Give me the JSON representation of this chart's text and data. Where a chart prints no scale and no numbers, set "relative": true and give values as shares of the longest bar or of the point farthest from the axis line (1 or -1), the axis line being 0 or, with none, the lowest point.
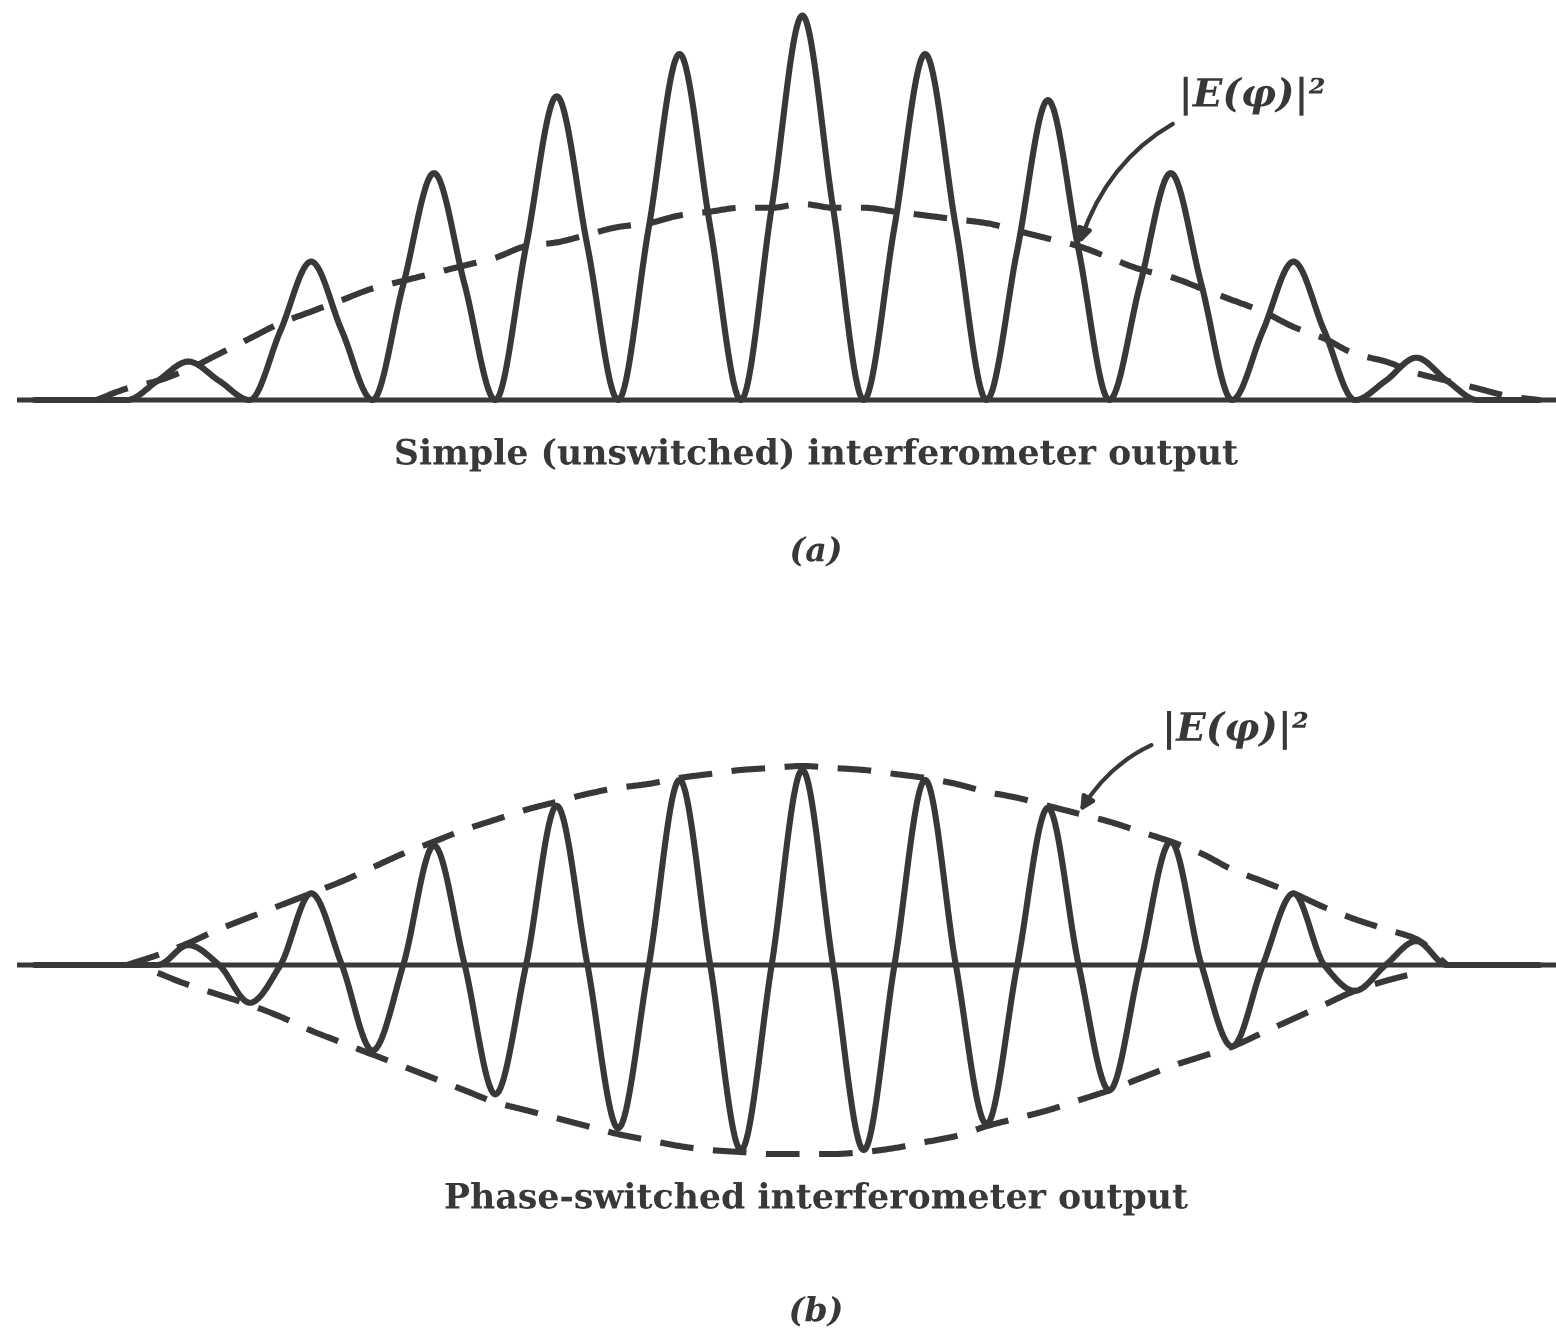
{
  "chart_data": [
    {
      "type": "line",
      "relative": true,
      "xlabel": "Simple (unswitched) interferometer output",
      "annotations": [
        "(a)"
      ],
      "categories": [
        null,
        null,
        null,
        null,
        null,
        null,
        null,
        null,
        null,
        null,
        null,
        null,
        null,
        null,
        null,
        null,
        null,
        null,
        null,
        null,
        null,
        null,
        null,
        null,
        null,
        null,
        null,
        null,
        null,
        null,
        null,
        null,
        null,
        null,
        null,
        null,
        null,
        null,
        null,
        null,
        null,
        null,
        null,
        null,
        null,
        null,
        null,
        null,
        null,
        null
      ],
      "series": [
        {
          "color": "#383838",
          "line_style": "solid",
          "values": [
            0,
            0,
            0,
            0,
            0.05,
            0.1,
            0.05,
            0,
            0.18,
            0.36,
            0.18,
            0,
            0.3,
            0.59,
            0.3,
            0,
            0.4,
            0.79,
            0.4,
            0,
            0.45,
            0.9,
            0.45,
            0,
            0.5,
            1.0,
            0.5,
            0,
            0.45,
            0.9,
            0.45,
            0,
            0.39,
            0.78,
            0.39,
            0,
            0.3,
            0.59,
            0.3,
            0,
            0.18,
            0.36,
            0.18,
            0,
            0.05,
            0.11,
            0.05,
            0,
            0,
            0
          ]
        },
        {
          "name": "|E(φ)|²",
          "color": "#383838",
          "line_style": "dashed",
          "values": [
            null,
            null,
            0,
            0.03,
            0.05,
            0.08,
            0.12,
            0.16,
            0.2,
            0.23,
            0.26,
            0.29,
            0.31,
            0.33,
            0.35,
            0.37,
            0.4,
            0.41,
            0.43,
            0.45,
            0.46,
            0.48,
            0.49,
            0.5,
            0.5,
            0.51,
            0.5,
            0.5,
            0.49,
            0.48,
            0.47,
            0.46,
            0.44,
            0.42,
            0.4,
            0.37,
            0.34,
            0.32,
            0.29,
            0.26,
            0.23,
            0.19,
            0.16,
            0.12,
            0.1,
            0.07,
            0.05,
            0.03,
            0.01,
            0
          ]
        }
      ]
    },
    {
      "type": "line",
      "relative": true,
      "xlabel": "Phase-switched interferometer output",
      "annotations": [
        "(b)"
      ],
      "categories": [
        null,
        null,
        null,
        null,
        null,
        null,
        null,
        null,
        null,
        null,
        null,
        null,
        null,
        null,
        null,
        null,
        null,
        null,
        null,
        null,
        null,
        null,
        null,
        null,
        null,
        null,
        null,
        null,
        null,
        null,
        null,
        null,
        null,
        null,
        null,
        null,
        null,
        null,
        null,
        null,
        null,
        null,
        null,
        null,
        null,
        null,
        null,
        null,
        null,
        null
      ],
      "series": [
        {
          "color": "#383838",
          "line_style": "solid",
          "values": [
            0,
            0,
            0,
            0,
            0,
            0.1,
            0,
            -0.19,
            0,
            0.36,
            0,
            -0.43,
            0,
            0.6,
            0,
            -0.65,
            0,
            0.8,
            0,
            -0.82,
            0,
            0.93,
            0,
            -0.93,
            0,
            0.98,
            0,
            -0.93,
            0,
            0.93,
            0,
            -0.8,
            0,
            0.79,
            0,
            -0.63,
            0,
            0.62,
            0,
            -0.41,
            0,
            0.36,
            0,
            -0.13,
            0,
            0.12,
            0,
            0,
            0,
            0
          ]
        },
        {
          "name": "|E(φ)|²",
          "color": "#383838",
          "line_style": "dashed",
          "values": [
            null,
            null,
            null,
            0,
            0.05,
            0.11,
            0.18,
            0.24,
            0.3,
            0.36,
            0.42,
            0.49,
            0.56,
            0.62,
            0.68,
            0.73,
            0.78,
            0.82,
            0.86,
            0.89,
            0.91,
            0.94,
            0.96,
            0.98,
            0.99,
            1.0,
            0.99,
            0.98,
            0.96,
            0.94,
            0.91,
            0.87,
            0.84,
            0.8,
            0.76,
            0.72,
            0.67,
            0.62,
            0.56,
            0.48,
            0.42,
            0.36,
            0.29,
            0.23,
            0.18,
            0.13,
            0,
            null,
            null,
            null
          ]
        },
        {
          "color": "#383838",
          "line_style": "dashed",
          "values": [
            null,
            null,
            null,
            null,
            -0.04,
            -0.1,
            -0.15,
            -0.2,
            -0.26,
            -0.33,
            -0.39,
            -0.45,
            -0.51,
            -0.57,
            -0.63,
            -0.69,
            -0.73,
            -0.77,
            -0.81,
            -0.85,
            -0.88,
            -0.91,
            -0.93,
            -0.94,
            -0.95,
            -0.95,
            -0.95,
            -0.94,
            -0.92,
            -0.89,
            -0.86,
            -0.81,
            -0.77,
            -0.73,
            -0.68,
            -0.63,
            -0.57,
            -0.51,
            -0.46,
            -0.41,
            -0.34,
            -0.27,
            -0.2,
            -0.13,
            -0.08,
            -0.04,
            null,
            null,
            null,
            null
          ]
        }
      ]
    }
  ]
}
